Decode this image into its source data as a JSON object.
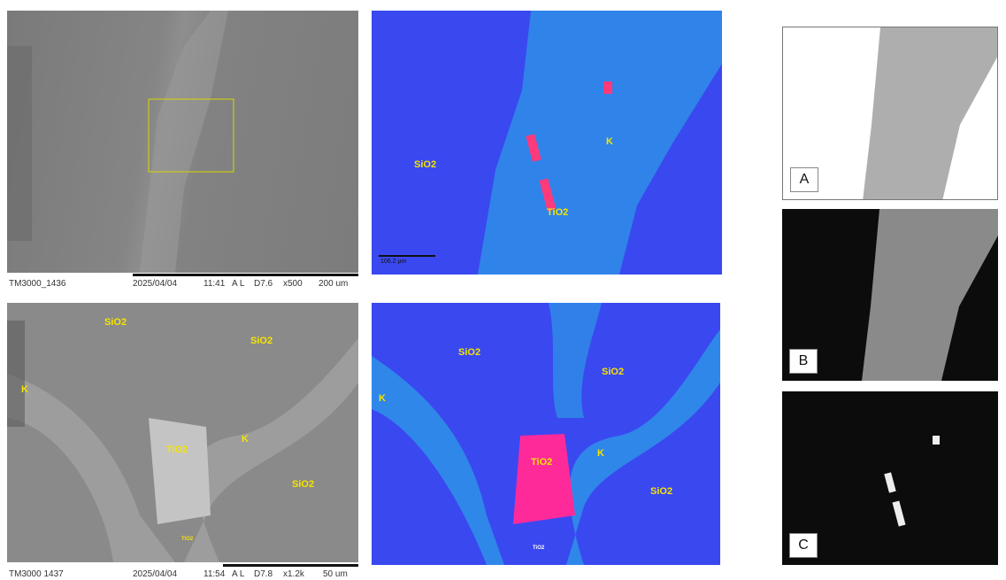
{
  "sem_top": {
    "footer": [
      "TM3000_1436",
      "2025/04/04",
      "11:41",
      "A L",
      "D7.6",
      "x500",
      "200 um"
    ]
  },
  "map_top": {
    "labels": [
      "SiO2",
      "K",
      "TiO2"
    ],
    "scale": "106.2 μm"
  },
  "sem_bottom": {
    "labels": [
      "SiO2",
      "SiO2",
      "K",
      "TiO2",
      "K",
      "SiO2",
      "TiO2"
    ],
    "footer": [
      "TM3000 1437",
      "2025/04/04",
      "11:54",
      "A L",
      "D7.8",
      "x1.2k",
      "50 um"
    ]
  },
  "map_bottom": {
    "labels": [
      "SiO2",
      "SiO2",
      "K",
      "TiO2",
      "K",
      "SiO2",
      "TiO2"
    ]
  },
  "elements": [
    "A",
    "B",
    "C"
  ]
}
